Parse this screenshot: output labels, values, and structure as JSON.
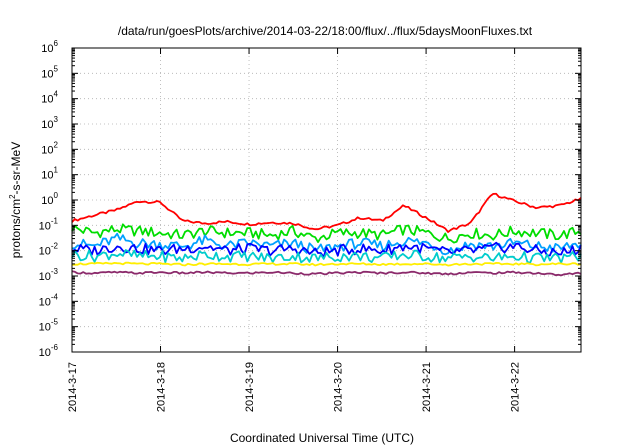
{
  "chart_data": {
    "type": "line",
    "title": "/data/run/goesPlots/archive/2014-03-22/18:00/flux/../flux/5daysMoonFluxes.txt",
    "xlabel": "Coordinated Universal Time (UTC)",
    "ylabel": "protons/cm²-s-sr-MeV",
    "ylabel_parts": {
      "pre": "protons/cm",
      "sup": "2",
      "post": "-s-sr-MeV"
    },
    "yscale": "log",
    "ylim": [
      1e-06,
      1000000.0
    ],
    "ytick_labels": [
      {
        "base": "10",
        "exp": "-6"
      },
      {
        "base": "10",
        "exp": "-5"
      },
      {
        "base": "10",
        "exp": "-4"
      },
      {
        "base": "10",
        "exp": "-3"
      },
      {
        "base": "10",
        "exp": "-2"
      },
      {
        "base": "10",
        "exp": "-1"
      },
      {
        "base": "10",
        "exp": "0"
      },
      {
        "base": "10",
        "exp": "1"
      },
      {
        "base": "10",
        "exp": "2"
      },
      {
        "base": "10",
        "exp": "3"
      },
      {
        "base": "10",
        "exp": "4"
      },
      {
        "base": "10",
        "exp": "5"
      },
      {
        "base": "10",
        "exp": "6"
      }
    ],
    "xlim": [
      "2014-03-17",
      "2014-03-22T18:00"
    ],
    "x_ticks": [
      "2014-3-17",
      "2014-3-18",
      "2014-3-19",
      "2014-3-20",
      "2014-3-21",
      "2014-3-22"
    ],
    "grid": true,
    "x": [
      "2014-03-17T00:00",
      "2014-03-17T06:00",
      "2014-03-17T12:00",
      "2014-03-17T18:00",
      "2014-03-18T00:00",
      "2014-03-18T06:00",
      "2014-03-18T12:00",
      "2014-03-18T18:00",
      "2014-03-19T00:00",
      "2014-03-19T06:00",
      "2014-03-19T12:00",
      "2014-03-19T18:00",
      "2014-03-20T00:00",
      "2014-03-20T06:00",
      "2014-03-20T12:00",
      "2014-03-20T18:00",
      "2014-03-21T00:00",
      "2014-03-21T06:00",
      "2014-03-21T12:00",
      "2014-03-21T18:00",
      "2014-03-22T00:00",
      "2014-03-22T06:00",
      "2014-03-22T12:00",
      "2014-03-22T18:00"
    ],
    "series": [
      {
        "color": "#ff0000",
        "values": [
          0.15,
          0.25,
          0.4,
          0.9,
          0.8,
          0.15,
          0.12,
          0.14,
          0.11,
          0.13,
          0.12,
          0.07,
          0.1,
          0.2,
          0.15,
          0.6,
          0.2,
          0.06,
          0.12,
          1.8,
          0.9,
          0.5,
          0.6,
          1.1
        ]
      },
      {
        "color": "#00dd00",
        "values": [
          0.08,
          0.05,
          0.07,
          0.06,
          0.05,
          0.04,
          0.06,
          0.05,
          0.05,
          0.04,
          0.06,
          0.03,
          0.05,
          0.05,
          0.04,
          0.07,
          0.05,
          0.03,
          0.05,
          0.04,
          0.06,
          0.05,
          0.04,
          0.06
        ]
      },
      {
        "color": "#00a0ff",
        "values": [
          0.02,
          0.015,
          0.03,
          0.02,
          0.018,
          0.015,
          0.025,
          0.015,
          0.02,
          0.015,
          0.02,
          0.01,
          0.015,
          0.02,
          0.015,
          0.025,
          0.02,
          0.01,
          0.018,
          0.015,
          0.02,
          0.015,
          0.012,
          0.02
        ]
      },
      {
        "color": "#0000ff",
        "values": [
          0.012,
          0.01,
          0.015,
          0.012,
          0.01,
          0.012,
          0.015,
          0.01,
          0.012,
          0.01,
          0.012,
          0.008,
          0.01,
          0.012,
          0.01,
          0.015,
          0.012,
          0.008,
          0.01,
          0.012,
          0.015,
          0.01,
          0.008,
          0.012
        ]
      },
      {
        "color": "#00cccc",
        "values": [
          0.007,
          0.006,
          0.008,
          0.006,
          0.006,
          0.005,
          0.007,
          0.006,
          0.006,
          0.005,
          0.006,
          0.005,
          0.006,
          0.006,
          0.005,
          0.007,
          0.006,
          0.005,
          0.006,
          0.005,
          0.006,
          0.005,
          0.005,
          0.006
        ]
      },
      {
        "color": "#ffee00",
        "values": [
          0.003,
          0.003,
          0.0032,
          0.003,
          0.003,
          0.0028,
          0.003,
          0.003,
          0.0029,
          0.003,
          0.003,
          0.0028,
          0.003,
          0.003,
          0.0029,
          0.003,
          0.003,
          0.0028,
          0.003,
          0.003,
          0.003,
          0.0029,
          0.003,
          0.003
        ]
      },
      {
        "color": "#8b2a6b",
        "values": [
          0.0014,
          0.0013,
          0.0014,
          0.0013,
          0.0014,
          0.0013,
          0.0014,
          0.0013,
          0.0013,
          0.0014,
          0.0013,
          0.0012,
          0.0013,
          0.0014,
          0.0013,
          0.0014,
          0.0013,
          0.0012,
          0.0014,
          0.0013,
          0.0014,
          0.0013,
          0.0011,
          0.0013
        ]
      }
    ]
  }
}
